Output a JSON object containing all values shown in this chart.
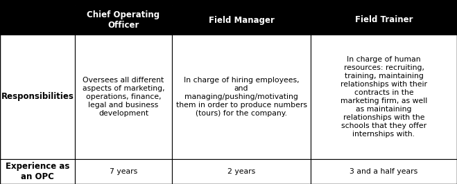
{
  "col_headers": [
    "",
    "Chief Operating\nOfficer",
    "Field Manager",
    "Field Trainer"
  ],
  "row_labels": [
    "Responsibilities",
    "Experience as\nan OPC"
  ],
  "cells": [
    [
      "Oversees all different\naspects of marketing,\noperations, finance,\nlegal and business\ndevelopment",
      "In charge of hiring employees,\nand\nmanaging/pushing/motivating\nthem in order to produce numbers\n(tours) for the company.",
      "In charge of human\nresources: recruiting,\ntraining, maintaining\nrelationships with their\ncontracts in the\nmarketing firm, as well\nas maintaining\nrelationships with the\nschools that they offer\ninternships with."
    ],
    [
      "7 years",
      "2 years",
      "3 and a half years"
    ]
  ],
  "header_bg": "#000000",
  "header_fg": "#ffffff",
  "cell_bg": "#ffffff",
  "border_color": "#000000",
  "figsize": [
    6.59,
    2.66
  ],
  "dpi": 100,
  "header_fontsize": 8.5,
  "cell_fontsize": 7.8,
  "row_label_fontsize": 8.5
}
